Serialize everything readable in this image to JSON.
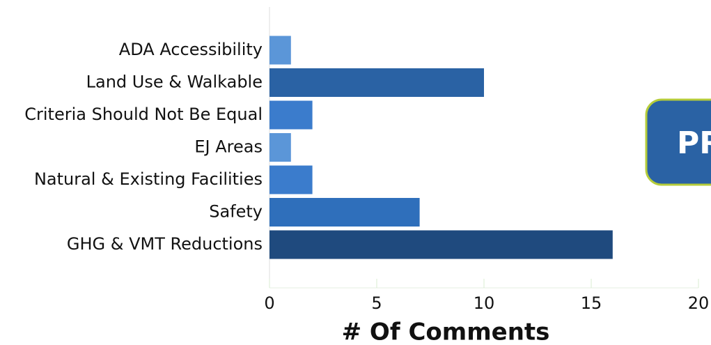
{
  "chart_data": {
    "type": "barh",
    "categories": [
      "ADA Accessibility",
      "Land Use & Walkable",
      "Criteria Should Not Be Equal",
      "EJ Areas",
      "Natural & Existing Facilities",
      "Safety",
      "GHG & VMT Reductions"
    ],
    "values": [
      1,
      10,
      2,
      1,
      2,
      7,
      16
    ],
    "colors": [
      "#5b96d8",
      "#2a62a4",
      "#3b7ccc",
      "#5b96d8",
      "#3b7ccc",
      "#2f6fbb",
      "#1f4a7e"
    ],
    "xlim": [
      0,
      20
    ],
    "xticks": [
      0,
      5,
      10,
      15,
      20
    ],
    "xlabel": "# Of Comments",
    "annotation": "PR"
  }
}
